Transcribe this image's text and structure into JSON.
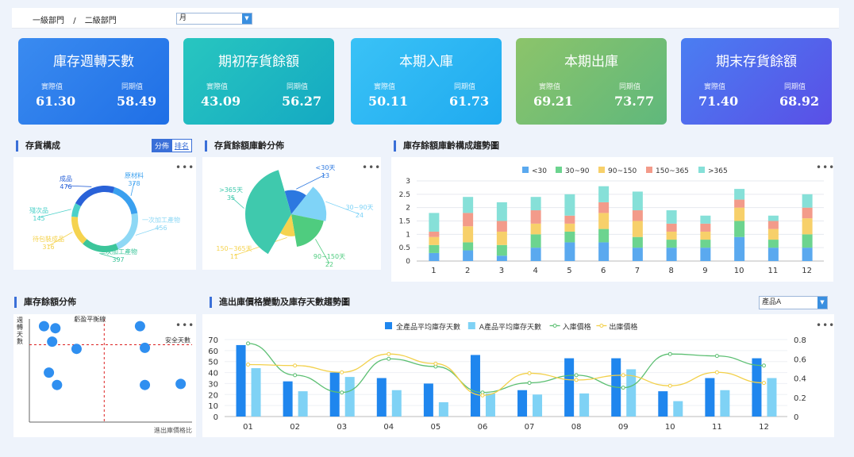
{
  "header": {
    "breadcrumb": [
      "一級部門",
      "/",
      "二級部門"
    ],
    "month_select": "月"
  },
  "kpis": [
    {
      "title": "庫存週轉天數",
      "actual_label": "實際值",
      "actual": "61.30",
      "yoy_label": "同期值",
      "yoy": "58.49",
      "color_from": "#3a8bf0",
      "color_to": "#1f6fe6"
    },
    {
      "title": "期初存貨餘額",
      "actual_label": "實際值",
      "actual": "43.09",
      "yoy_label": "同期值",
      "yoy": "56.27",
      "color_from": "#28c6c0",
      "color_to": "#14a9c2"
    },
    {
      "title": "本期入庫",
      "actual_label": "實際值",
      "actual": "50.11",
      "yoy_label": "同期值",
      "yoy": "61.73",
      "color_from": "#3ac2f6",
      "color_to": "#1faaf0"
    },
    {
      "title": "本期出庫",
      "actual_label": "實際值",
      "actual": "69.21",
      "yoy_label": "同期值",
      "yoy": "73.77",
      "color_from": "#8cc46a",
      "color_to": "#5fb87c"
    },
    {
      "title": "期末存貨餘額",
      "actual_label": "實際值",
      "actual": "71.40",
      "yoy_label": "同期值",
      "yoy": "68.92",
      "color_from": "#4a7ef2",
      "color_to": "#5a4fe6"
    }
  ],
  "panels": {
    "composition": {
      "title": "存貨構成",
      "tab_active": "分佈",
      "tab_inactive": "排名"
    },
    "aging": {
      "title": "存貨餘額庫齡分佈"
    },
    "trend": {
      "title": "庫存餘額庫齡構成趨勢圖"
    },
    "balance": {
      "title": "庫存餘額分佈"
    },
    "price": {
      "title": "進出庫價格變動及庫存天數趨勢圖",
      "product_select": "產品A"
    }
  },
  "chart_data": [
    {
      "type": "pie",
      "variant": "donut",
      "categories": [
        "原材料",
        "一次加工產物",
        "二次加工產物",
        "待包裝成品",
        "殘次品",
        "成品"
      ],
      "values": [
        378,
        456,
        397,
        316,
        145,
        476
      ],
      "colors": [
        "#3aa0ef",
        "#8ed8f5",
        "#3cc59a",
        "#f5d34f",
        "#4cd1c9",
        "#2a62d8"
      ]
    },
    {
      "type": "pie",
      "variant": "rose",
      "categories": [
        "<30天",
        "30~90天",
        "90~150天",
        "150~365天",
        ">365天"
      ],
      "values": [
        13,
        24,
        22,
        11,
        35
      ],
      "colors": [
        "#2c78e0",
        "#7fd3f7",
        "#4fcc7f",
        "#f5d34f",
        "#3fc9ad"
      ]
    },
    {
      "type": "bar",
      "stacked": true,
      "categories": [
        "1",
        "2",
        "3",
        "4",
        "5",
        "6",
        "7",
        "8",
        "9",
        "10",
        "11",
        "12"
      ],
      "series": [
        {
          "name": "<30",
          "color": "#5aa9ef",
          "values": [
            0.3,
            0.4,
            0.2,
            0.5,
            0.7,
            0.7,
            0.5,
            0.5,
            0.5,
            0.9,
            0.5,
            0.5
          ]
        },
        {
          "name": "30~90",
          "color": "#6cd48f",
          "values": [
            0.3,
            0.3,
            0.4,
            0.5,
            0.4,
            0.5,
            0.4,
            0.3,
            0.3,
            0.6,
            0.3,
            0.5
          ]
        },
        {
          "name": "90~150",
          "color": "#f7d06a",
          "values": [
            0.3,
            0.6,
            0.5,
            0.4,
            0.3,
            0.6,
            0.6,
            0.3,
            0.3,
            0.5,
            0.4,
            0.6
          ]
        },
        {
          "name": "150~365",
          "color": "#f39b8a",
          "values": [
            0.2,
            0.5,
            0.4,
            0.5,
            0.3,
            0.4,
            0.4,
            0.3,
            0.3,
            0.3,
            0.3,
            0.4
          ]
        },
        {
          "name": ">365",
          "color": "#86e0d8",
          "values": [
            0.7,
            0.6,
            0.7,
            0.5,
            0.8,
            0.6,
            0.7,
            0.5,
            0.3,
            0.4,
            0.2,
            0.5
          ]
        }
      ],
      "ylim": [
        0,
        3
      ],
      "yticks": [
        "0",
        "0.5",
        "1",
        "1.5",
        "2",
        "2.5",
        "3"
      ],
      "legend": "top"
    },
    {
      "type": "scatter",
      "ylabel": "週轉天數",
      "xlabel": "進出庫價格比",
      "annotations": [
        "虧盈平衡線",
        "安全天數"
      ],
      "points": [
        [
          0.09,
          0.93
        ],
        [
          0.16,
          0.91
        ],
        [
          0.14,
          0.78
        ],
        [
          0.29,
          0.71
        ],
        [
          0.12,
          0.48
        ],
        [
          0.17,
          0.36
        ],
        [
          0.68,
          0.93
        ],
        [
          0.71,
          0.72
        ],
        [
          0.71,
          0.36
        ],
        [
          0.93,
          0.37
        ]
      ],
      "xlim": [
        0,
        1
      ],
      "ylim": [
        0,
        1
      ],
      "vline": 0.46,
      "hline": 0.75,
      "color": "#2f8ff0"
    },
    {
      "type": "bar",
      "combo": true,
      "categories": [
        "01",
        "02",
        "03",
        "04",
        "05",
        "06",
        "07",
        "08",
        "09",
        "10",
        "11",
        "12"
      ],
      "series": [
        {
          "name": "全產品平均庫存天數",
          "kind": "bar",
          "axis": "left",
          "color": "#1f86ee",
          "values": [
            65,
            32,
            40,
            35,
            30,
            56,
            24,
            53,
            53,
            23,
            35,
            53
          ]
        },
        {
          "name": "A產品平均庫存天數",
          "kind": "bar",
          "axis": "left",
          "color": "#7fd2f5",
          "values": [
            44,
            23,
            36,
            24,
            13,
            21,
            20,
            21,
            43,
            14,
            24,
            35
          ]
        },
        {
          "name": "入庫價格",
          "kind": "line",
          "axis": "right",
          "color": "#5cbf72",
          "values": [
            0.76,
            0.43,
            0.25,
            0.6,
            0.52,
            0.25,
            0.35,
            0.43,
            0.3,
            0.65,
            0.63,
            0.53
          ]
        },
        {
          "name": "出庫價格",
          "kind": "line",
          "axis": "right",
          "color": "#f2d04a",
          "values": [
            0.54,
            0.53,
            0.46,
            0.65,
            0.55,
            0.22,
            0.45,
            0.38,
            0.43,
            0.32,
            0.46,
            0.35
          ]
        }
      ],
      "ylim_left": [
        0,
        70
      ],
      "yticks_left": [
        "0",
        "10",
        "20",
        "30",
        "40",
        "50",
        "60",
        "70"
      ],
      "ylim_right": [
        0,
        0.8
      ],
      "yticks_right": [
        "0",
        "0.2",
        "0.4",
        "0.6",
        "0.8"
      ],
      "legend": "top"
    }
  ]
}
